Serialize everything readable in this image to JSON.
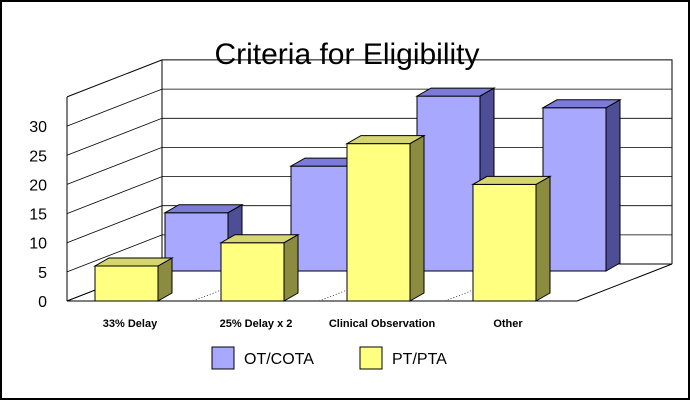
{
  "chart_data": {
    "type": "bar",
    "title": "Criteria for Eligibility",
    "categories": [
      "33% Delay",
      "25% Delay x 2",
      "Clinical Observation",
      "Other"
    ],
    "series": [
      {
        "name": "OT/COTA",
        "values": [
          10,
          18,
          30,
          28
        ],
        "color": "#a8a8ff",
        "top_color": "#7c7cd8",
        "side_color": "#4e4e96"
      },
      {
        "name": "PT/PTA",
        "values": [
          6,
          10,
          27,
          20
        ],
        "color": "#ffff80",
        "top_color": "#d6d670",
        "side_color": "#8c8c40"
      }
    ],
    "yticks": [
      0,
      5,
      10,
      15,
      20,
      25,
      30
    ],
    "ylim": [
      0,
      35
    ],
    "grid": true,
    "three_d": true,
    "legend_position": "bottom"
  }
}
